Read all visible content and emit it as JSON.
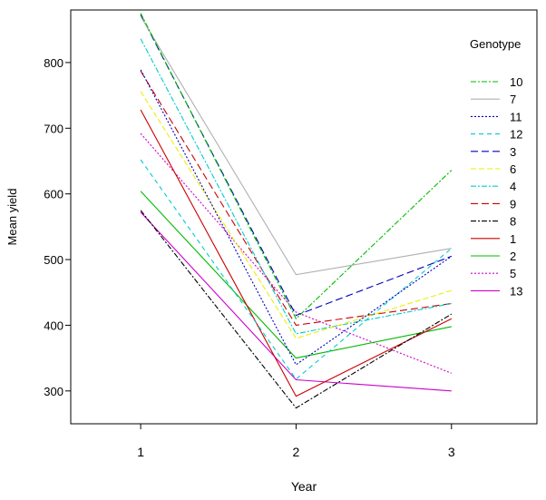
{
  "chart_data": {
    "type": "line",
    "xlabel": "Year",
    "ylabel": "Mean yield",
    "x": [
      1,
      2,
      3
    ],
    "x_tick_labels": [
      "1",
      "2",
      "3"
    ],
    "xlim": [
      0.55,
      3.55
    ],
    "ylim": [
      250,
      880
    ],
    "y_ticks": [
      300,
      400,
      500,
      600,
      700,
      800
    ],
    "legend_title": "Genotype",
    "legend_position": "right",
    "grid": false,
    "series": [
      {
        "name": "10",
        "color": "#00bb00",
        "dash": "6,2,2,2",
        "values": [
          875,
          410,
          636
        ]
      },
      {
        "name": "7",
        "color": "#b0b0b0",
        "dash": "",
        "values": [
          870,
          477,
          517
        ]
      },
      {
        "name": "11",
        "color": "#0000bb",
        "dash": "2,2",
        "values": [
          789,
          340,
          505
        ]
      },
      {
        "name": "12",
        "color": "#00cccc",
        "dash": "5,4",
        "values": [
          652,
          318,
          517
        ]
      },
      {
        "name": "3",
        "color": "#0000bb",
        "dash": "8,4",
        "values": [
          873,
          415,
          505
        ]
      },
      {
        "name": "6",
        "color": "#eeee00",
        "dash": "6,3",
        "values": [
          756,
          380,
          453
        ]
      },
      {
        "name": "4",
        "color": "#00cccc",
        "dash": "6,2,2,2",
        "values": [
          836,
          387,
          433
        ]
      },
      {
        "name": "9",
        "color": "#cc0000",
        "dash": "8,4",
        "values": [
          787,
          400,
          433
        ]
      },
      {
        "name": "8",
        "color": "#000000",
        "dash": "6,2,2,2",
        "values": [
          575,
          274,
          417
        ]
      },
      {
        "name": "1",
        "color": "#cc0000",
        "dash": "",
        "values": [
          728,
          292,
          410
        ]
      },
      {
        "name": "2",
        "color": "#00bb00",
        "dash": "",
        "values": [
          604,
          350,
          398
        ]
      },
      {
        "name": "5",
        "color": "#cc00cc",
        "dash": "2,2",
        "values": [
          692,
          420,
          327
        ]
      },
      {
        "name": "13",
        "color": "#cc00cc",
        "dash": "",
        "values": [
          572,
          317,
          300
        ]
      }
    ]
  }
}
